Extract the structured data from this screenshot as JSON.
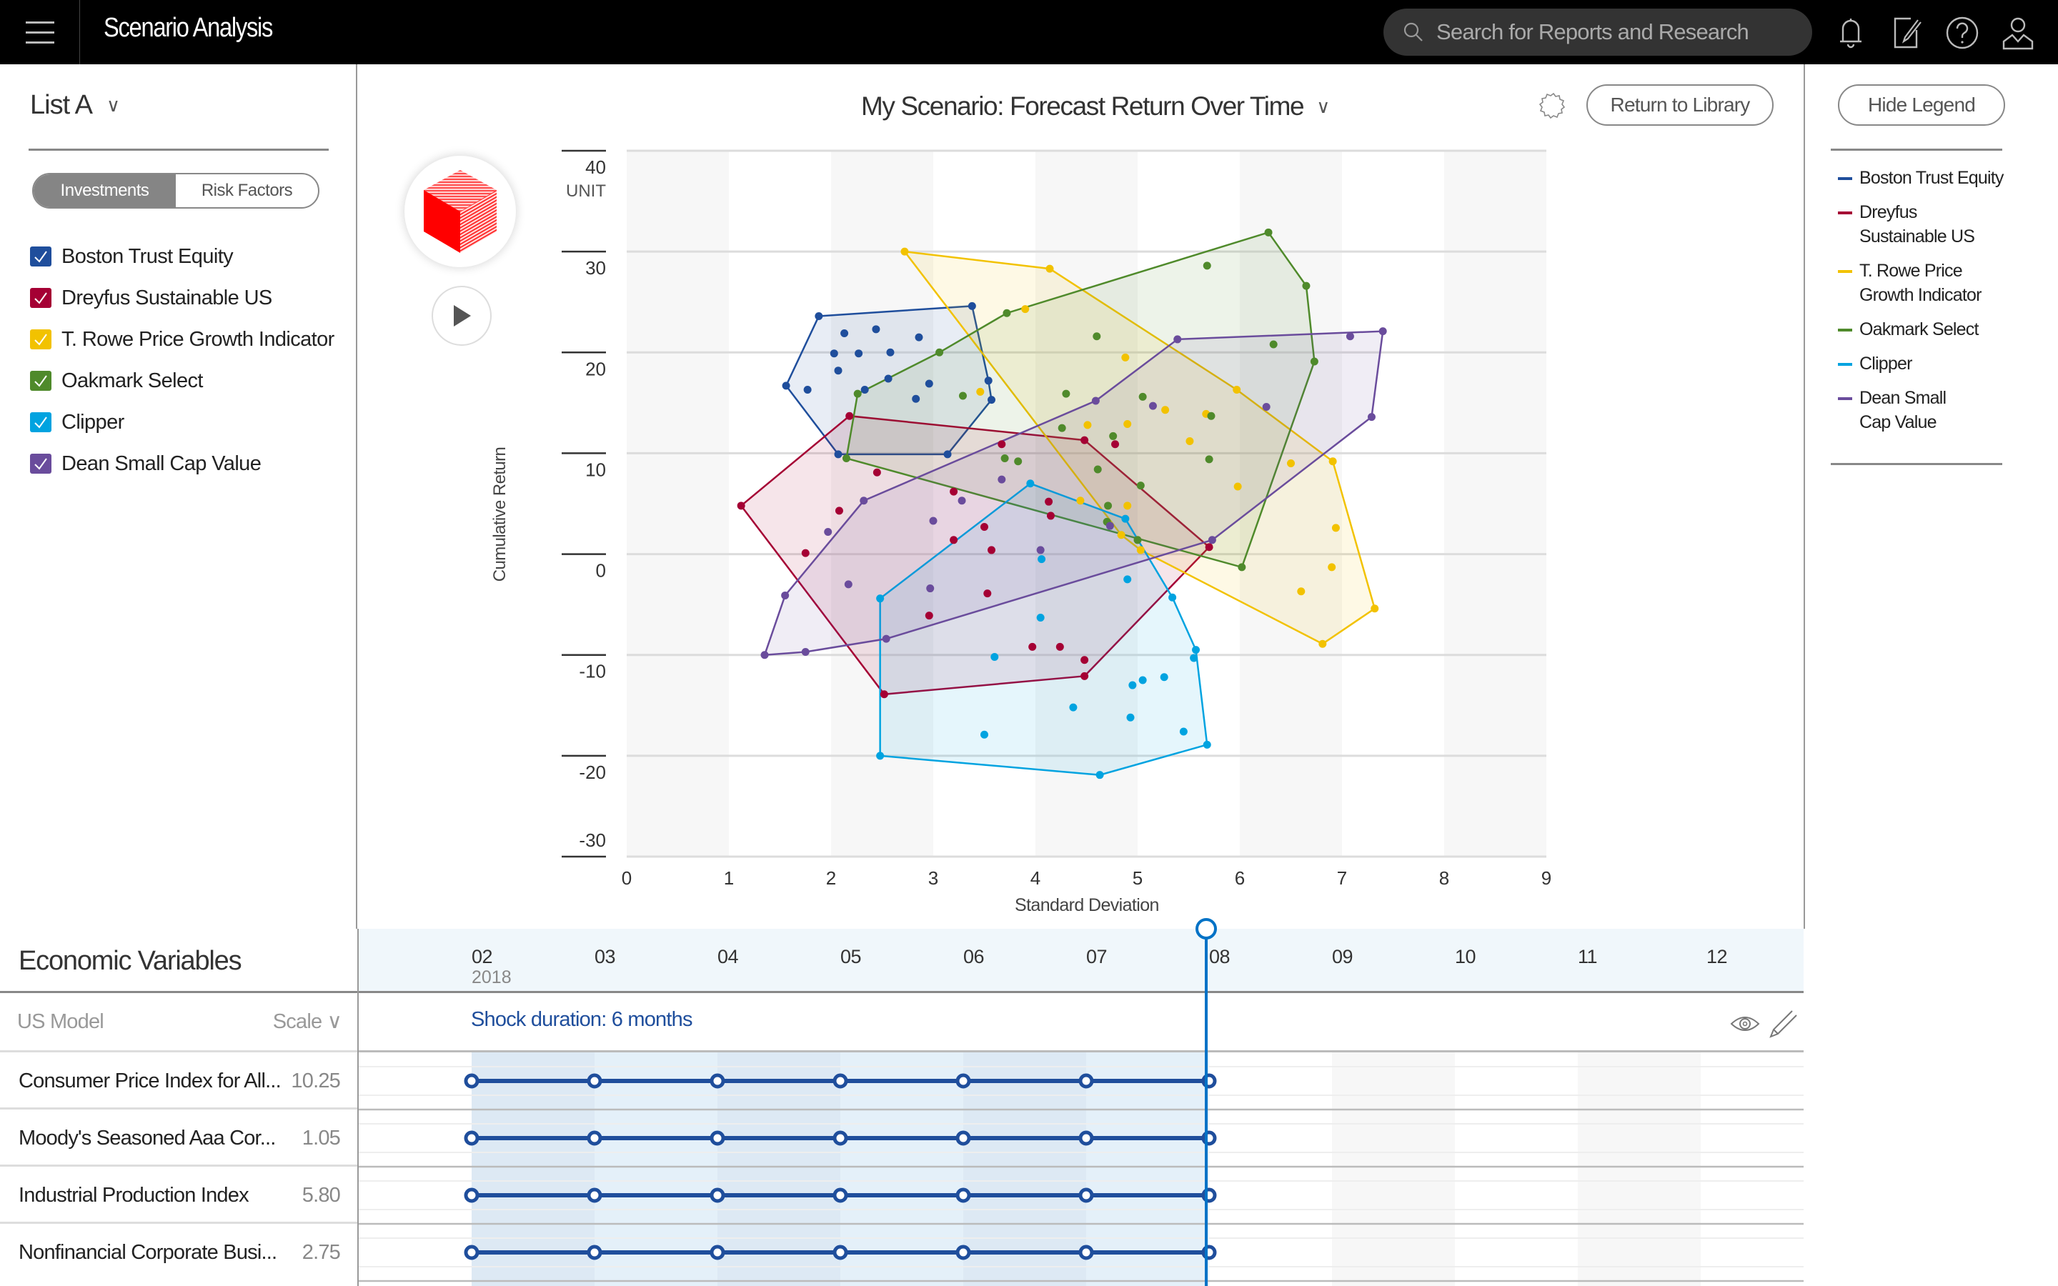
{
  "topbar": {
    "app_title": "Scenario Analysis",
    "search_placeholder": "Search for Reports and Research",
    "icons": [
      "menu-icon",
      "bell-icon",
      "edit-note-icon",
      "help-icon",
      "user-icon"
    ]
  },
  "left_panel": {
    "list_name": "List A",
    "segments": [
      {
        "label": "Investments",
        "active": true
      },
      {
        "label": "Risk Factors",
        "active": false
      }
    ],
    "investments": [
      {
        "label": "Boston Trust Equity",
        "checked": true,
        "color": "#1f4e9c"
      },
      {
        "label": "Dreyfus Sustainable US",
        "checked": true,
        "color": "#a50034"
      },
      {
        "label": "T. Rowe Price Growth Indicator",
        "checked": true,
        "color": "#f2c200"
      },
      {
        "label": "Oakmark Select",
        "checked": true,
        "color": "#4f8a2b"
      },
      {
        "label": "Clipper",
        "checked": true,
        "color": "#00a3e0"
      },
      {
        "label": "Dean Small Cap Value",
        "checked": true,
        "color": "#6a4c9c"
      }
    ]
  },
  "chart_header": {
    "title": "My Scenario: Forecast Return Over Time",
    "return_button": "Return to Library",
    "hide_legend_button": "Hide Legend"
  },
  "legend": {
    "items": [
      {
        "label": "Boston Trust Equity",
        "color": "#1f4e9c"
      },
      {
        "label": "Dreyfus Sustainable US",
        "color": "#a50034"
      },
      {
        "label": "T. Rowe Price Growth Indicator",
        "color": "#f2c200"
      },
      {
        "label": "Oakmark Select",
        "color": "#4f8a2b"
      },
      {
        "label": "Clipper",
        "color": "#00a3e0"
      },
      {
        "label": "Dean Small Cap Value",
        "color": "#6a4c9c"
      }
    ]
  },
  "chart_data": {
    "type": "scatter",
    "title": "My Scenario: Forecast Return Over Time",
    "xlabel": "Standard Deviation",
    "ylabel": "Cumulative Return",
    "y_unit": "UNIT",
    "xlim": [
      0,
      9
    ],
    "ylim": [
      -30,
      40
    ],
    "x_ticks": [
      0,
      1,
      2,
      3,
      4,
      5,
      6,
      7,
      8,
      9
    ],
    "y_ticks": [
      40,
      30,
      20,
      10,
      0,
      -10,
      -20,
      -30
    ],
    "grid": true,
    "legend_position": "right",
    "series": [
      {
        "name": "Boston Trust Equity",
        "color": "#1f4e9c",
        "hull": [
          [
            1.88,
            23.6
          ],
          [
            3.38,
            24.6
          ],
          [
            3.54,
            17.2
          ],
          [
            3.57,
            15.3
          ],
          [
            3.14,
            9.9
          ],
          [
            2.07,
            9.9
          ],
          [
            1.56,
            16.7
          ]
        ],
        "points": [
          [
            2.13,
            21.9
          ],
          [
            2.44,
            22.3
          ],
          [
            2.86,
            21.5
          ],
          [
            2.03,
            19.9
          ],
          [
            2.27,
            19.9
          ],
          [
            2.58,
            20.0
          ],
          [
            2.07,
            18.2
          ],
          [
            1.77,
            16.3
          ],
          [
            2.56,
            17.4
          ],
          [
            2.33,
            16.3
          ],
          [
            2.96,
            16.9
          ],
          [
            2.83,
            15.4
          ]
        ]
      },
      {
        "name": "Dreyfus Sustainable US",
        "color": "#a50034",
        "hull": [
          [
            1.12,
            4.8
          ],
          [
            2.18,
            13.7
          ],
          [
            4.48,
            11.3
          ],
          [
            5.7,
            0.7
          ],
          [
            4.48,
            -12.1
          ],
          [
            2.52,
            -13.9
          ]
        ],
        "points": [
          [
            2.45,
            8.1
          ],
          [
            1.75,
            0.1
          ],
          [
            3.2,
            6.2
          ],
          [
            3.67,
            10.9
          ],
          [
            4.78,
            10.9
          ],
          [
            3.57,
            0.4
          ],
          [
            4.13,
            5.2
          ],
          [
            2.08,
            4.3
          ],
          [
            3.2,
            1.4
          ],
          [
            3.5,
            2.7
          ],
          [
            4.15,
            3.8
          ],
          [
            3.53,
            -3.9
          ],
          [
            3.97,
            -9.2
          ],
          [
            4.24,
            -9.2
          ],
          [
            2.96,
            -6.1
          ],
          [
            4.48,
            -10.5
          ]
        ]
      },
      {
        "name": "T. Rowe Price Growth Indicator",
        "color": "#f2c200",
        "hull": [
          [
            2.72,
            30.0
          ],
          [
            4.14,
            28.3
          ],
          [
            5.97,
            16.3
          ],
          [
            6.91,
            9.2
          ],
          [
            7.32,
            -5.4
          ],
          [
            6.81,
            -8.9
          ],
          [
            5.03,
            0.4
          ],
          [
            4.84,
            1.9
          ]
        ],
        "points": [
          [
            3.9,
            24.3
          ],
          [
            4.88,
            19.5
          ],
          [
            3.46,
            16.1
          ],
          [
            4.51,
            12.8
          ],
          [
            5.27,
            14.3
          ],
          [
            5.67,
            13.9
          ],
          [
            5.98,
            6.7
          ],
          [
            6.5,
            9.0
          ],
          [
            6.94,
            2.6
          ],
          [
            6.9,
            -1.3
          ],
          [
            5.51,
            11.2
          ],
          [
            4.9,
            12.9
          ],
          [
            6.6,
            -3.7
          ],
          [
            4.44,
            5.3
          ],
          [
            4.9,
            4.8
          ]
        ]
      },
      {
        "name": "Oakmark Select",
        "color": "#4f8a2b",
        "hull": [
          [
            2.15,
            9.5
          ],
          [
            2.26,
            15.9
          ],
          [
            3.06,
            20.0
          ],
          [
            3.72,
            23.9
          ],
          [
            6.28,
            31.9
          ],
          [
            6.65,
            26.6
          ],
          [
            6.73,
            19.1
          ],
          [
            6.02,
            -1.3
          ]
        ],
        "points": [
          [
            4.6,
            21.6
          ],
          [
            5.68,
            28.6
          ],
          [
            6.33,
            20.8
          ],
          [
            3.29,
            15.7
          ],
          [
            4.3,
            15.9
          ],
          [
            5.05,
            15.6
          ],
          [
            4.26,
            12.5
          ],
          [
            5.72,
            13.7
          ],
          [
            4.76,
            11.7
          ],
          [
            3.7,
            9.5
          ],
          [
            5.7,
            9.4
          ],
          [
            3.83,
            9.2
          ],
          [
            4.61,
            8.4
          ],
          [
            5.03,
            6.8
          ],
          [
            4.71,
            4.8
          ],
          [
            4.7,
            3.2
          ],
          [
            5.0,
            1.4
          ]
        ]
      },
      {
        "name": "Clipper",
        "color": "#00a3e0",
        "hull": [
          [
            2.48,
            -4.4
          ],
          [
            3.95,
            7.0
          ],
          [
            4.88,
            3.5
          ],
          [
            5.34,
            -4.3
          ],
          [
            5.57,
            -9.5
          ],
          [
            5.68,
            -18.9
          ],
          [
            4.63,
            -21.9
          ],
          [
            2.48,
            -20.0
          ]
        ],
        "points": [
          [
            4.9,
            -2.5
          ],
          [
            4.06,
            -0.5
          ],
          [
            4.05,
            -6.3
          ],
          [
            3.6,
            -10.2
          ],
          [
            4.95,
            -13.0
          ],
          [
            3.5,
            -17.9
          ],
          [
            4.37,
            -15.2
          ],
          [
            5.05,
            -12.5
          ],
          [
            5.26,
            -12.2
          ],
          [
            5.45,
            -17.6
          ],
          [
            4.93,
            -16.2
          ],
          [
            5.55,
            -10.3
          ]
        ]
      },
      {
        "name": "Dean Small Cap Value",
        "color": "#6a4c9c",
        "hull": [
          [
            1.35,
            -10.0
          ],
          [
            1.55,
            -4.1
          ],
          [
            2.32,
            5.3
          ],
          [
            4.59,
            15.2
          ],
          [
            5.39,
            21.3
          ],
          [
            7.4,
            22.1
          ],
          [
            7.29,
            13.6
          ],
          [
            5.73,
            1.4
          ],
          [
            2.54,
            -8.4
          ],
          [
            1.75,
            -9.7
          ]
        ],
        "points": [
          [
            1.97,
            2.2
          ],
          [
            2.17,
            -3.0
          ],
          [
            2.97,
            -3.4
          ],
          [
            3.0,
            3.3
          ],
          [
            3.67,
            7.4
          ],
          [
            4.05,
            0.4
          ],
          [
            3.28,
            5.3
          ],
          [
            5.15,
            14.7
          ],
          [
            7.08,
            21.6
          ],
          [
            6.26,
            14.6
          ],
          [
            4.73,
            2.8
          ]
        ]
      }
    ]
  },
  "economic_variables": {
    "title": "Economic Variables",
    "model_label": "US Model",
    "scale_label": "Scale",
    "rows": [
      {
        "name": "Consumer Price Index for All...",
        "value": "10.25"
      },
      {
        "name": "Moody's Seasoned Aaa Cor...",
        "value": "1.05"
      },
      {
        "name": "Industrial Production Index",
        "value": "5.80"
      },
      {
        "name": "Nonfinancial Corporate Busi...",
        "value": "2.75"
      }
    ]
  },
  "timeline": {
    "months": [
      "02",
      "03",
      "04",
      "05",
      "06",
      "07",
      "08",
      "09",
      "10",
      "11",
      "12"
    ],
    "year": "2018",
    "shock_label": "Shock duration: 6 months",
    "shock_start_month": "02",
    "shock_end_month": "08",
    "accent_color": "#1f4e9c",
    "cursor_color": "#0072c6",
    "icons": [
      "eye-icon",
      "pencil-icon"
    ]
  }
}
